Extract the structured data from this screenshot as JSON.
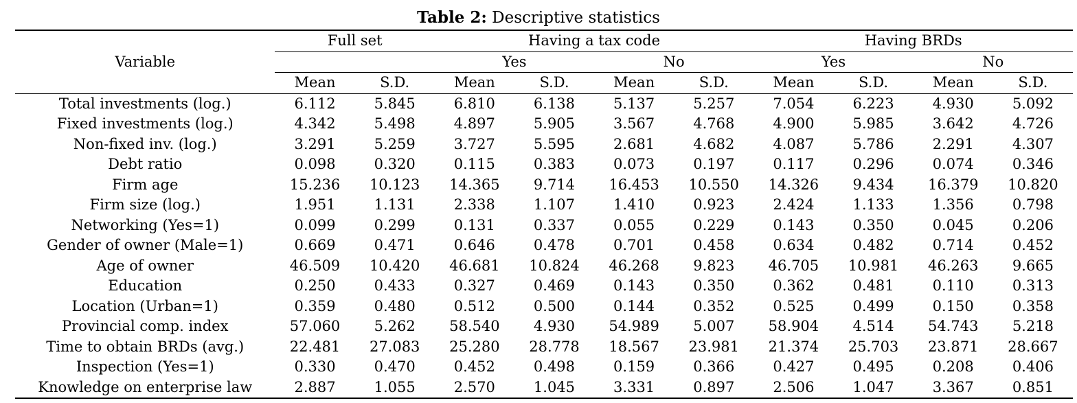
{
  "caption": {
    "label": "Table 2:",
    "text": " Descriptive statistics"
  },
  "header": {
    "variable": "Variable",
    "groups": [
      "Full set",
      "Having a tax code",
      "Having BRDs"
    ],
    "yes": "Yes",
    "no": "No",
    "mean": "Mean",
    "sd": "S.D."
  },
  "rows": [
    {
      "name": "Total investments (log.)",
      "values": [
        "6.112",
        "5.845",
        "6.810",
        "6.138",
        "5.137",
        "5.257",
        "7.054",
        "6.223",
        "4.930",
        "5.092"
      ]
    },
    {
      "name": "Fixed investments (log.)",
      "values": [
        "4.342",
        "5.498",
        "4.897",
        "5.905",
        "3.567",
        "4.768",
        "4.900",
        "5.985",
        "3.642",
        "4.726"
      ]
    },
    {
      "name": "Non-fixed inv. (log.)",
      "values": [
        "3.291",
        "5.259",
        "3.727",
        "5.595",
        "2.681",
        "4.682",
        "4.087",
        "5.786",
        "2.291",
        "4.307"
      ]
    },
    {
      "name": "Debt ratio",
      "values": [
        "0.098",
        "0.320",
        "0.115",
        "0.383",
        "0.073",
        "0.197",
        "0.117",
        "0.296",
        "0.074",
        "0.346"
      ]
    },
    {
      "name": "Firm age",
      "values": [
        "15.236",
        "10.123",
        "14.365",
        "9.714",
        "16.453",
        "10.550",
        "14.326",
        "9.434",
        "16.379",
        "10.820"
      ]
    },
    {
      "name": "Firm size (log.)",
      "values": [
        "1.951",
        "1.131",
        "2.338",
        "1.107",
        "1.410",
        "0.923",
        "2.424",
        "1.133",
        "1.356",
        "0.798"
      ]
    },
    {
      "name": "Networking (Yes=1)",
      "values": [
        "0.099",
        "0.299",
        "0.131",
        "0.337",
        "0.055",
        "0.229",
        "0.143",
        "0.350",
        "0.045",
        "0.206"
      ]
    },
    {
      "name": "Gender of owner (Male=1)",
      "values": [
        "0.669",
        "0.471",
        "0.646",
        "0.478",
        "0.701",
        "0.458",
        "0.634",
        "0.482",
        "0.714",
        "0.452"
      ]
    },
    {
      "name": "Age of owner",
      "values": [
        "46.509",
        "10.420",
        "46.681",
        "10.824",
        "46.268",
        "9.823",
        "46.705",
        "10.981",
        "46.263",
        "9.665"
      ]
    },
    {
      "name": "Education",
      "values": [
        "0.250",
        "0.433",
        "0.327",
        "0.469",
        "0.143",
        "0.350",
        "0.362",
        "0.481",
        "0.110",
        "0.313"
      ]
    },
    {
      "name": "Location (Urban=1)",
      "values": [
        "0.359",
        "0.480",
        "0.512",
        "0.500",
        "0.144",
        "0.352",
        "0.525",
        "0.499",
        "0.150",
        "0.358"
      ]
    },
    {
      "name": "Provincial comp. index",
      "values": [
        "57.060",
        "5.262",
        "58.540",
        "4.930",
        "54.989",
        "5.007",
        "58.904",
        "4.514",
        "54.743",
        "5.218"
      ]
    },
    {
      "name": "Time to obtain BRDs (avg.)",
      "values": [
        "22.481",
        "27.083",
        "25.280",
        "28.778",
        "18.567",
        "23.981",
        "21.374",
        "25.703",
        "23.871",
        "28.667"
      ]
    },
    {
      "name": "Inspection (Yes=1)",
      "values": [
        "0.330",
        "0.470",
        "0.452",
        "0.498",
        "0.159",
        "0.366",
        "0.427",
        "0.495",
        "0.208",
        "0.406"
      ]
    },
    {
      "name": "Knowledge on enterprise law",
      "values": [
        "2.887",
        "1.055",
        "2.570",
        "1.045",
        "3.331",
        "0.897",
        "2.506",
        "1.047",
        "3.367",
        "0.851"
      ]
    }
  ]
}
